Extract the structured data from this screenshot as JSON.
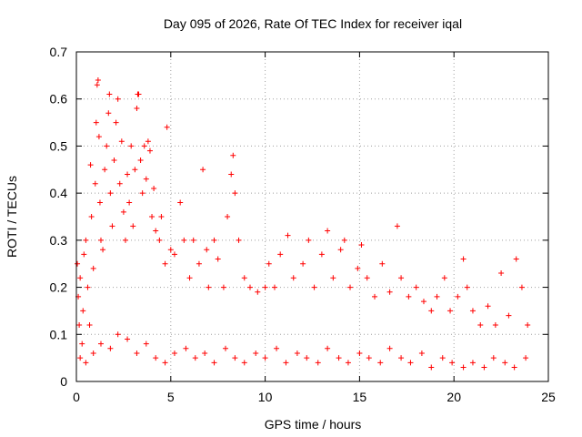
{
  "chart_data": {
    "type": "scatter",
    "title": "Day 095 of 2026, Rate Of TEC Index for receiver iqal",
    "xlabel": "GPS time / hours",
    "ylabel": "ROTI / TECUs",
    "xlim": [
      0,
      25
    ],
    "ylim": [
      0,
      0.7
    ],
    "xticks": [
      0,
      5,
      10,
      15,
      20,
      25
    ],
    "yticks": [
      0,
      0.1,
      0.2,
      0.3,
      0.4,
      0.5,
      0.6,
      0.7
    ],
    "xtick_labels": [
      "0",
      "5",
      "10",
      "15",
      "20",
      "25"
    ],
    "ytick_labels": [
      "0",
      "0.1",
      "0.2",
      "0.3",
      "0.4",
      "0.5",
      "0.6",
      "0.7"
    ],
    "grid": true,
    "marker": "+",
    "color": "#ff0000",
    "series": [
      {
        "name": "ROTI",
        "points": [
          [
            0.05,
            0.25
          ],
          [
            0.1,
            0.18
          ],
          [
            0.15,
            0.12
          ],
          [
            0.2,
            0.22
          ],
          [
            0.3,
            0.08
          ],
          [
            0.35,
            0.15
          ],
          [
            0.4,
            0.27
          ],
          [
            0.5,
            0.3
          ],
          [
            0.6,
            0.2
          ],
          [
            0.7,
            0.12
          ],
          [
            0.75,
            0.46
          ],
          [
            0.8,
            0.35
          ],
          [
            0.9,
            0.24
          ],
          [
            1.0,
            0.42
          ],
          [
            1.05,
            0.55
          ],
          [
            1.1,
            0.63
          ],
          [
            1.15,
            0.64
          ],
          [
            1.2,
            0.52
          ],
          [
            1.25,
            0.38
          ],
          [
            1.3,
            0.3
          ],
          [
            1.4,
            0.28
          ],
          [
            1.5,
            0.45
          ],
          [
            1.6,
            0.5
          ],
          [
            1.7,
            0.57
          ],
          [
            1.75,
            0.61
          ],
          [
            1.8,
            0.4
          ],
          [
            1.9,
            0.33
          ],
          [
            2.0,
            0.47
          ],
          [
            2.1,
            0.55
          ],
          [
            2.2,
            0.6
          ],
          [
            2.3,
            0.42
          ],
          [
            2.4,
            0.51
          ],
          [
            2.5,
            0.36
          ],
          [
            2.6,
            0.3
          ],
          [
            2.7,
            0.44
          ],
          [
            2.8,
            0.38
          ],
          [
            2.9,
            0.5
          ],
          [
            3.0,
            0.33
          ],
          [
            3.1,
            0.45
          ],
          [
            3.2,
            0.58
          ],
          [
            3.25,
            0.61
          ],
          [
            3.3,
            0.61
          ],
          [
            3.4,
            0.47
          ],
          [
            3.5,
            0.4
          ],
          [
            3.6,
            0.5
          ],
          [
            3.7,
            0.43
          ],
          [
            3.8,
            0.51
          ],
          [
            3.9,
            0.49
          ],
          [
            4.0,
            0.35
          ],
          [
            4.1,
            0.41
          ],
          [
            4.2,
            0.32
          ],
          [
            4.4,
            0.3
          ],
          [
            4.5,
            0.35
          ],
          [
            4.7,
            0.25
          ],
          [
            4.8,
            0.54
          ],
          [
            5.0,
            0.28
          ],
          [
            5.2,
            0.27
          ],
          [
            5.5,
            0.38
          ],
          [
            5.7,
            0.3
          ],
          [
            6.0,
            0.22
          ],
          [
            6.2,
            0.3
          ],
          [
            6.5,
            0.25
          ],
          [
            6.7,
            0.45
          ],
          [
            6.9,
            0.28
          ],
          [
            7.0,
            0.2
          ],
          [
            7.3,
            0.3
          ],
          [
            7.5,
            0.26
          ],
          [
            7.8,
            0.2
          ],
          [
            8.0,
            0.35
          ],
          [
            8.2,
            0.44
          ],
          [
            8.3,
            0.48
          ],
          [
            8.4,
            0.4
          ],
          [
            8.6,
            0.3
          ],
          [
            8.9,
            0.22
          ],
          [
            9.2,
            0.2
          ],
          [
            9.6,
            0.19
          ],
          [
            10.0,
            0.2
          ],
          [
            10.2,
            0.25
          ],
          [
            10.5,
            0.2
          ],
          [
            10.8,
            0.27
          ],
          [
            11.2,
            0.31
          ],
          [
            11.5,
            0.22
          ],
          [
            12.0,
            0.25
          ],
          [
            12.3,
            0.3
          ],
          [
            12.6,
            0.2
          ],
          [
            13.0,
            0.27
          ],
          [
            13.3,
            0.32
          ],
          [
            13.6,
            0.22
          ],
          [
            14.0,
            0.28
          ],
          [
            14.2,
            0.3
          ],
          [
            14.5,
            0.2
          ],
          [
            14.9,
            0.24
          ],
          [
            15.1,
            0.29
          ],
          [
            15.4,
            0.22
          ],
          [
            15.8,
            0.18
          ],
          [
            16.2,
            0.25
          ],
          [
            16.6,
            0.19
          ],
          [
            17.0,
            0.33
          ],
          [
            17.2,
            0.22
          ],
          [
            17.6,
            0.18
          ],
          [
            18.0,
            0.2
          ],
          [
            18.4,
            0.17
          ],
          [
            18.8,
            0.15
          ],
          [
            19.1,
            0.18
          ],
          [
            19.5,
            0.22
          ],
          [
            19.8,
            0.15
          ],
          [
            20.2,
            0.18
          ],
          [
            20.5,
            0.26
          ],
          [
            20.7,
            0.2
          ],
          [
            21.0,
            0.15
          ],
          [
            21.4,
            0.12
          ],
          [
            21.8,
            0.16
          ],
          [
            22.2,
            0.12
          ],
          [
            22.5,
            0.23
          ],
          [
            22.9,
            0.14
          ],
          [
            23.3,
            0.26
          ],
          [
            23.6,
            0.2
          ],
          [
            23.9,
            0.12
          ],
          [
            0.2,
            0.05
          ],
          [
            0.5,
            0.04
          ],
          [
            0.9,
            0.06
          ],
          [
            1.3,
            0.08
          ],
          [
            1.8,
            0.07
          ],
          [
            2.2,
            0.1
          ],
          [
            2.7,
            0.09
          ],
          [
            3.2,
            0.06
          ],
          [
            3.7,
            0.08
          ],
          [
            4.2,
            0.05
          ],
          [
            4.7,
            0.04
          ],
          [
            5.2,
            0.06
          ],
          [
            5.8,
            0.07
          ],
          [
            6.3,
            0.05
          ],
          [
            6.8,
            0.06
          ],
          [
            7.3,
            0.04
          ],
          [
            7.9,
            0.07
          ],
          [
            8.4,
            0.05
          ],
          [
            8.9,
            0.04
          ],
          [
            9.5,
            0.06
          ],
          [
            10.0,
            0.05
          ],
          [
            10.6,
            0.07
          ],
          [
            11.1,
            0.04
          ],
          [
            11.7,
            0.06
          ],
          [
            12.2,
            0.05
          ],
          [
            12.8,
            0.04
          ],
          [
            13.3,
            0.07
          ],
          [
            13.9,
            0.05
          ],
          [
            14.4,
            0.04
          ],
          [
            15.0,
            0.06
          ],
          [
            15.5,
            0.05
          ],
          [
            16.1,
            0.04
          ],
          [
            16.6,
            0.07
          ],
          [
            17.2,
            0.05
          ],
          [
            17.7,
            0.04
          ],
          [
            18.3,
            0.06
          ],
          [
            18.8,
            0.03
          ],
          [
            19.4,
            0.05
          ],
          [
            19.9,
            0.04
          ],
          [
            20.5,
            0.03
          ],
          [
            21.0,
            0.04
          ],
          [
            21.6,
            0.03
          ],
          [
            22.1,
            0.05
          ],
          [
            22.7,
            0.04
          ],
          [
            23.2,
            0.03
          ],
          [
            23.8,
            0.05
          ]
        ]
      }
    ]
  }
}
